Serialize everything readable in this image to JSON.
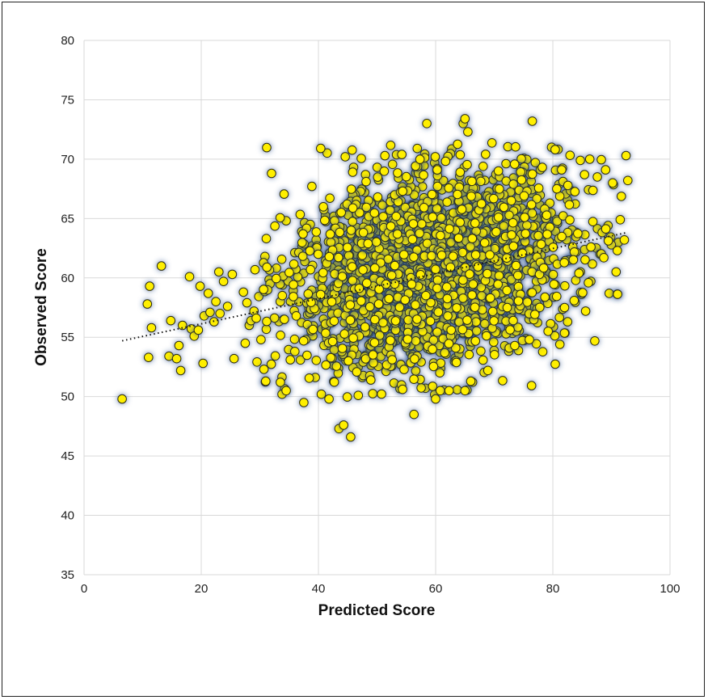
{
  "chart_data": {
    "type": "scatter",
    "title": "",
    "xlabel": "Predicted Score",
    "ylabel": "Observed Score",
    "xlim": [
      0,
      100
    ],
    "ylim": [
      35,
      80
    ],
    "x_ticks": [
      "0",
      "20",
      "40",
      "60",
      "80",
      "100"
    ],
    "y_ticks": [
      "35",
      "40",
      "45",
      "50",
      "55",
      "60",
      "65",
      "70",
      "75",
      "80"
    ],
    "grid": true,
    "legend": "none",
    "marker_color": "#ffef00",
    "marker_edge_color": "#2a2a10",
    "trendline": {
      "style": "dotted",
      "x": [
        6.5,
        92.5
      ],
      "y": [
        54.7,
        63.8
      ]
    },
    "points": [
      [
        6.5,
        49.8
      ],
      [
        10.8,
        57.8
      ],
      [
        11.2,
        59.3
      ],
      [
        11.5,
        55.8
      ],
      [
        11.0,
        53.3
      ],
      [
        13.2,
        61.0
      ],
      [
        14.5,
        53.4
      ],
      [
        14.8,
        56.4
      ],
      [
        15.8,
        53.2
      ],
      [
        16.2,
        54.3
      ],
      [
        16.5,
        52.2
      ],
      [
        16.8,
        56.0
      ],
      [
        18.0,
        60.1
      ],
      [
        18.3,
        55.7
      ],
      [
        18.8,
        55.1
      ],
      [
        19.5,
        55.6
      ],
      [
        19.8,
        59.3
      ],
      [
        20.3,
        52.8
      ],
      [
        20.5,
        56.8
      ],
      [
        21.2,
        58.7
      ],
      [
        21.5,
        57.1
      ],
      [
        22.2,
        56.3
      ],
      [
        22.5,
        58.0
      ],
      [
        23.0,
        60.5
      ],
      [
        23.2,
        57.0
      ],
      [
        23.8,
        59.7
      ],
      [
        24.5,
        57.6
      ],
      [
        25.3,
        60.3
      ],
      [
        25.6,
        53.2
      ],
      [
        27.2,
        58.8
      ],
      [
        27.5,
        54.5
      ],
      [
        27.8,
        57.9
      ],
      [
        28.2,
        56.0
      ],
      [
        28.5,
        56.4
      ],
      [
        29.0,
        57.2
      ],
      [
        29.4,
        56.6
      ],
      [
        30.2,
        54.8
      ],
      [
        30.7,
        52.3
      ],
      [
        31.0,
        51.3
      ],
      [
        31.2,
        60.9
      ],
      [
        32.0,
        68.8
      ],
      [
        33.5,
        51.2
      ],
      [
        33.8,
        50.2
      ],
      [
        34.5,
        50.5
      ],
      [
        35.2,
        53.1
      ],
      [
        37.5,
        49.5
      ],
      [
        40.5,
        50.2
      ],
      [
        41.8,
        49.8
      ],
      [
        43.5,
        47.3
      ],
      [
        44.3,
        47.6
      ],
      [
        45.5,
        46.6
      ],
      [
        56.3,
        48.5
      ],
      [
        60.0,
        49.8
      ],
      [
        60.8,
        50.5
      ],
      [
        62.3,
        50.5
      ],
      [
        65.0,
        50.5
      ],
      [
        66.0,
        51.3
      ],
      [
        64.7,
        73.0
      ],
      [
        65.5,
        72.3
      ],
      [
        58.5,
        73.0
      ],
      [
        65.0,
        73.4
      ],
      [
        76.5,
        73.2
      ],
      [
        79.8,
        71.0
      ],
      [
        80.4,
        70.8
      ],
      [
        84.7,
        69.9
      ],
      [
        86.3,
        70.0
      ],
      [
        85.4,
        68.7
      ],
      [
        87.6,
        68.5
      ],
      [
        89.0,
        69.1
      ],
      [
        90.2,
        68.0
      ],
      [
        91.5,
        64.9
      ],
      [
        92.5,
        70.3
      ],
      [
        92.8,
        68.2
      ],
      [
        92.2,
        63.2
      ],
      [
        91.0,
        62.3
      ],
      [
        90.8,
        60.5
      ],
      [
        88.7,
        61.7
      ],
      [
        86.5,
        62.6
      ],
      [
        85.6,
        57.2
      ],
      [
        82.0,
        57.5
      ],
      [
        79.2,
        55.5
      ],
      [
        76.0,
        54.8
      ],
      [
        73.5,
        54.3
      ]
    ],
    "cluster": {
      "n": 2400,
      "x_mean": 59,
      "x_sd": 11.8,
      "y_mean": 60.6,
      "y_sd": 4.1,
      "corr": 0.24,
      "x_range": [
        29,
        93
      ],
      "y_range": [
        49.8,
        71.5
      ]
    }
  }
}
